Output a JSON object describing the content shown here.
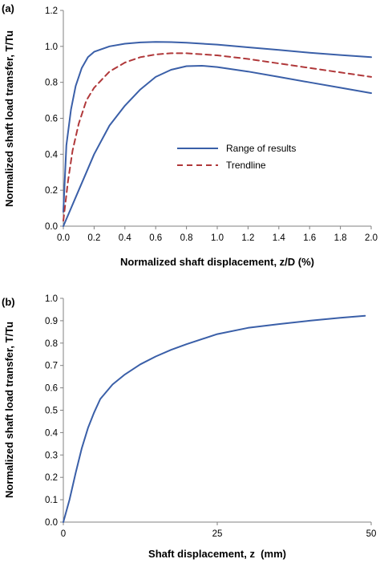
{
  "colors": {
    "results": "#3a5fa8",
    "trend": "#b0383a",
    "axis": "#808080"
  },
  "chart_data": [
    {
      "panel_label": "(a)",
      "type": "line",
      "xlabel": "Normalized shaft displacement, z/D (%)",
      "ylabel": "Normalized shaft load transfer, T/Tu",
      "xlim": [
        0,
        2.0
      ],
      "ylim": [
        0,
        1.2
      ],
      "xticks": [
        "0.0",
        "0.2",
        "0.4",
        "0.6",
        "0.8",
        "1.0",
        "1.2",
        "1.4",
        "1.6",
        "1.8",
        "2.0"
      ],
      "yticks": [
        "0.0",
        "0.2",
        "0.4",
        "0.6",
        "0.8",
        "1.0",
        "1.2"
      ],
      "legend": {
        "position": "center-right",
        "entries": [
          "Range of results",
          "Trendline"
        ]
      },
      "series": [
        {
          "name": "Range of results",
          "style": "solid",
          "color": "#3a5fa8",
          "x": [
            0,
            0.02,
            0.05,
            0.08,
            0.12,
            0.16,
            0.2,
            0.3,
            0.4,
            0.5,
            0.6,
            0.7,
            0.8,
            1.0,
            1.2,
            1.4,
            1.6,
            1.8,
            2.0
          ],
          "y": [
            0.08,
            0.45,
            0.65,
            0.78,
            0.88,
            0.94,
            0.97,
            1.0,
            1.015,
            1.022,
            1.025,
            1.024,
            1.02,
            1.01,
            0.995,
            0.98,
            0.965,
            0.952,
            0.94
          ]
        },
        {
          "style": "solid",
          "color": "#3a5fa8",
          "x": [
            0,
            0.05,
            0.1,
            0.15,
            0.2,
            0.3,
            0.4,
            0.5,
            0.6,
            0.7,
            0.8,
            0.9,
            1.0,
            1.2,
            1.4,
            1.6,
            1.8,
            2.0
          ],
          "y": [
            0.0,
            0.1,
            0.2,
            0.3,
            0.4,
            0.56,
            0.67,
            0.76,
            0.83,
            0.87,
            0.89,
            0.892,
            0.885,
            0.86,
            0.83,
            0.8,
            0.77,
            0.74
          ]
        },
        {
          "name": "Trendline",
          "style": "dashed",
          "color": "#b0383a",
          "x": [
            0,
            0.03,
            0.06,
            0.1,
            0.15,
            0.2,
            0.3,
            0.4,
            0.5,
            0.6,
            0.7,
            0.8,
            1.0,
            1.2,
            1.4,
            1.6,
            1.8,
            2.0
          ],
          "y": [
            0.03,
            0.25,
            0.42,
            0.57,
            0.7,
            0.77,
            0.86,
            0.91,
            0.94,
            0.955,
            0.962,
            0.962,
            0.95,
            0.93,
            0.905,
            0.88,
            0.855,
            0.83
          ]
        }
      ]
    },
    {
      "panel_label": "(b)",
      "type": "line",
      "xlabel": "Shaft displacement, z  (mm)",
      "ylabel": "Normalized shaft load transfer, T/Tu",
      "xlim": [
        0,
        50
      ],
      "ylim": [
        0,
        1.0
      ],
      "xticks": [
        "0",
        "25",
        "50"
      ],
      "xtick_values": [
        0,
        25,
        50
      ],
      "yticks": [
        "0.0",
        "0.1",
        "0.2",
        "0.3",
        "0.4",
        "0.5",
        "0.6",
        "0.7",
        "0.8",
        "0.9",
        "1.0"
      ],
      "series": [
        {
          "style": "solid",
          "color": "#3a5fa8",
          "x": [
            0,
            1,
            2,
            3,
            4,
            5,
            6,
            8,
            10,
            12.5,
            15,
            17.5,
            20,
            25,
            30,
            35,
            40,
            45,
            49
          ],
          "y": [
            0.0,
            0.1,
            0.22,
            0.33,
            0.42,
            0.49,
            0.55,
            0.615,
            0.66,
            0.705,
            0.74,
            0.77,
            0.795,
            0.84,
            0.868,
            0.885,
            0.9,
            0.913,
            0.922
          ]
        }
      ]
    }
  ]
}
